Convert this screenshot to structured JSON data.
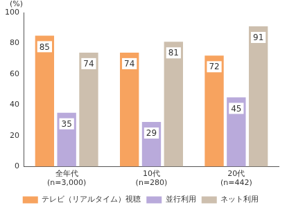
{
  "chart_data": {
    "type": "bar",
    "y_label": "(%)",
    "categories": [
      "全年代\n(n=3,000)",
      "10代\n(n=280)",
      "20代\n(n=442)"
    ],
    "series": [
      {
        "name": "テレビ（リアルタイム）視聴",
        "color": "#f7a35f",
        "values": [
          85,
          74,
          72
        ]
      },
      {
        "name": "並行利用",
        "color": "#b9aadb",
        "values": [
          35,
          29,
          45
        ]
      },
      {
        "name": "ネット利用",
        "color": "#cdbfae",
        "values": [
          74,
          81,
          91
        ]
      }
    ],
    "ylim": [
      0,
      100
    ],
    "yticks": [
      0,
      20,
      40,
      60,
      80,
      100
    ],
    "grid": false,
    "legend": "bottom",
    "data_labels": true
  }
}
